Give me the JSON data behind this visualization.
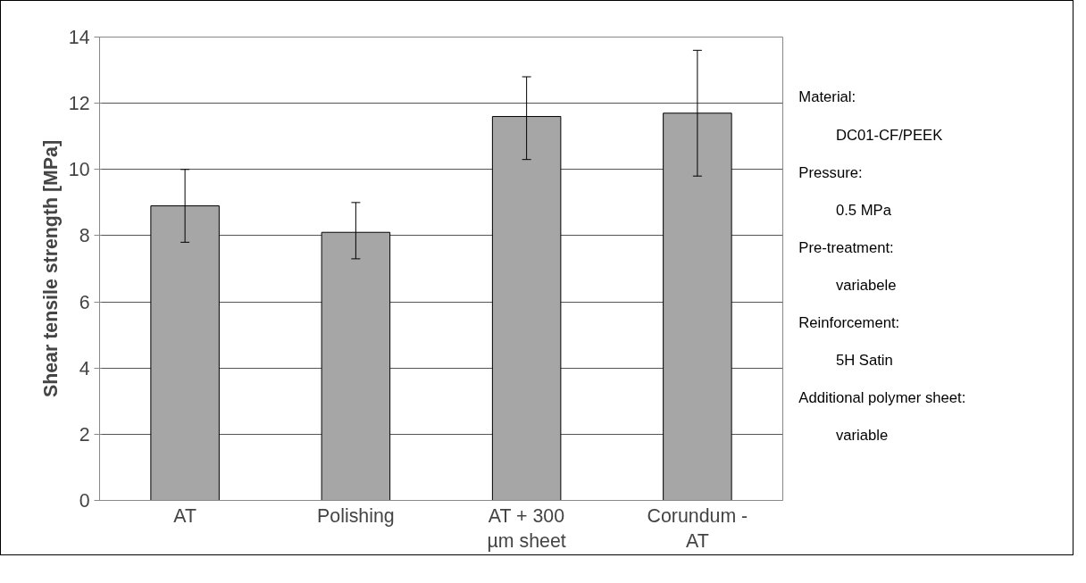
{
  "chart_data": {
    "type": "bar",
    "ylabel": "Shear tensile strength [MPa]",
    "categories": [
      "AT",
      "Polishing",
      "AT + 300 µm sheet",
      "Corundum - AT"
    ],
    "values": [
      8.9,
      8.1,
      11.6,
      11.7
    ],
    "errors": [
      [
        7.8,
        10.0
      ],
      [
        7.3,
        9.0
      ],
      [
        10.3,
        12.8
      ],
      [
        9.8,
        13.6
      ]
    ],
    "color": "#a6a6a6",
    "ylim": [
      0,
      14
    ],
    "yticks": [
      0,
      2,
      4,
      6,
      8,
      10,
      12,
      14
    ],
    "grid": "y",
    "annotations": [
      "Material:",
      "DC01-CF/PEEK",
      "Pressure:",
      "0.5 MPa",
      "Pre-treatment:",
      "variabele",
      "Reinforcement:",
      "5H Satin",
      "Additional polymer sheet:",
      "variable"
    ]
  }
}
